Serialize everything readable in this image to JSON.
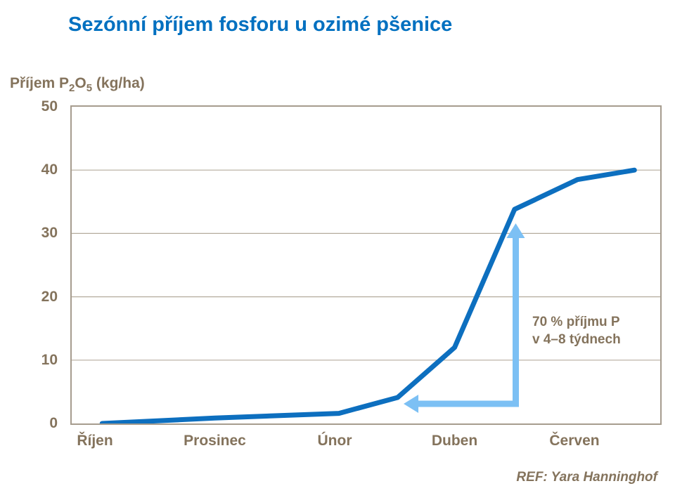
{
  "title": "Sezónní příjem fosforu u ozimé pšenice",
  "footer": "REF: Yara Hanninghof",
  "y_axis_label": {
    "pre": "Příjem P",
    "sub1": "2",
    "mid": "O",
    "sub2": "5",
    "post": " (kg/ha)"
  },
  "colors": {
    "title_blue": "#0070c0",
    "curve_blue": "#0d6fbf",
    "arrow_light_blue": "#7cc0f4",
    "text_brown": "#84735c",
    "gridline": "#b5ab9d",
    "frame": "#a69c8e",
    "background": "#ffffff"
  },
  "chart_data": {
    "type": "line",
    "title": "Sezónní příjem fosforu u ozimé pšenice",
    "xlabel": "",
    "ylabel": "Příjem P2O5 (kg/ha)",
    "ylim": [
      0,
      50
    ],
    "yticks": [
      0,
      10,
      20,
      30,
      40,
      50
    ],
    "gridlines": [
      10,
      20,
      30,
      40
    ],
    "grid": "horizontal only",
    "legend_position": "none",
    "x_axis": {
      "tick_labels": [
        "Říjen",
        "Prosinec",
        "Únor",
        "Duben",
        "Červen"
      ],
      "tick_month_positions": [
        0,
        2,
        4,
        6,
        8
      ],
      "note": "month scale: 0 = Říjen (Oct), 2 = Prosinec (Dec), 4 = Únor (Feb), 6 = Duben (Apr), 8 = Červen (Jun)"
    },
    "series": [
      {
        "name": "Příjem P2O5 (kg/ha)",
        "points_month_value": [
          [
            0.12,
            0
          ],
          [
            2.0,
            0.85
          ],
          [
            4.07,
            1.6
          ],
          [
            5.05,
            4.1
          ],
          [
            6.0,
            12
          ],
          [
            7.0,
            33.8
          ],
          [
            8.05,
            38.5
          ],
          [
            9.0,
            40
          ]
        ]
      }
    ],
    "annotation": {
      "line1": "70 % příjmu P",
      "line2": "v 4–8 týdnech"
    },
    "annotation_arrow": {
      "shape": "elbow connector with arrowheads on both ends",
      "up_tip_month_value": [
        7.02,
        31.6
      ],
      "corner_month_value": [
        7.02,
        3.1
      ],
      "left_tip_month_value": [
        5.15,
        3.1
      ]
    }
  }
}
